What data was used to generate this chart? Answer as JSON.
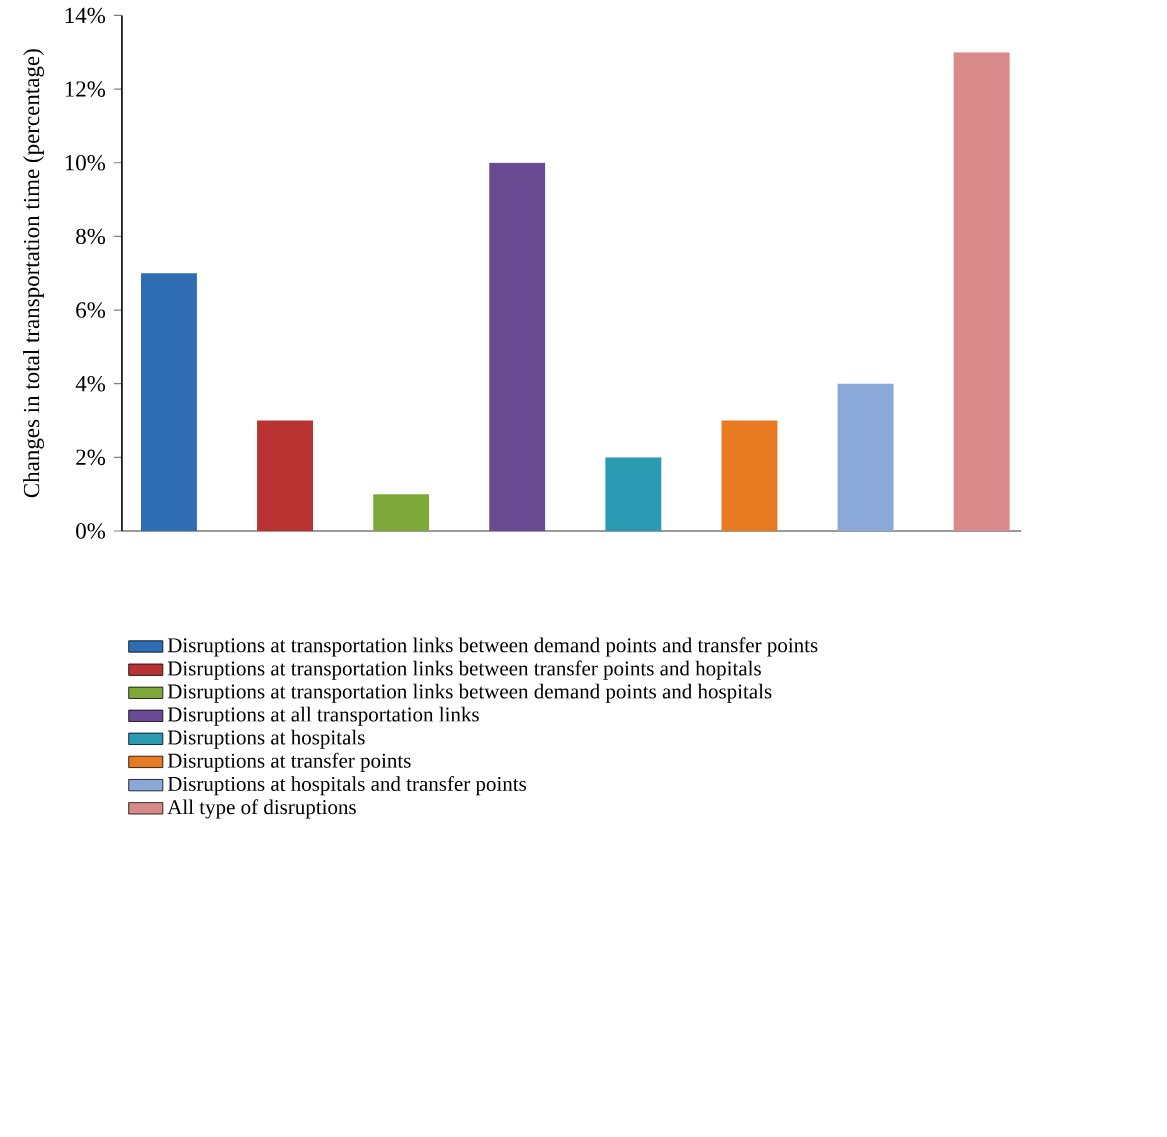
{
  "chart_data": {
    "type": "bar",
    "ylabel": "Changes in total transportation time (percentage)",
    "categories": [
      null,
      null,
      null,
      null,
      null,
      null,
      null,
      null
    ],
    "ylim": [
      0,
      14
    ],
    "yticks": [
      {
        "value": 0,
        "label": "0%"
      },
      {
        "value": 2,
        "label": "2%"
      },
      {
        "value": 4,
        "label": "4%"
      },
      {
        "value": 6,
        "label": "6%"
      },
      {
        "value": 8,
        "label": "8%"
      },
      {
        "value": 10,
        "label": "10%"
      },
      {
        "value": 12,
        "label": "12%"
      },
      {
        "value": 14,
        "label": "14%"
      }
    ],
    "tick_labels": "y",
    "legend": "bottom",
    "series": [
      {
        "name": "Disruptions at transportation links between demand points and transfer points",
        "color": "#2e6db4",
        "values": [
          7,
          null,
          null,
          null,
          null,
          null,
          null,
          null
        ]
      },
      {
        "name": "Disruptions at transportation links between transfer points and hopitals",
        "color": "#b83232",
        "values": [
          null,
          3,
          null,
          null,
          null,
          null,
          null,
          null
        ]
      },
      {
        "name": "Disruptions at transportation links between demand points and hospitals",
        "color": "#7fa83a",
        "values": [
          null,
          null,
          1,
          null,
          null,
          null,
          null,
          null
        ]
      },
      {
        "name": "Disruptions at all transportation links",
        "color": "#6a4a93",
        "values": [
          null,
          null,
          null,
          10,
          null,
          null,
          null,
          null
        ]
      },
      {
        "name": "Disruptions at hospitals",
        "color": "#2a9bb3",
        "values": [
          null,
          null,
          null,
          null,
          2,
          null,
          null,
          null
        ]
      },
      {
        "name": "Disruptions at transfer points",
        "color": "#e87a22",
        "values": [
          null,
          null,
          null,
          null,
          null,
          3,
          null,
          null
        ]
      },
      {
        "name": "Disruptions at hospitals and transfer points",
        "color": "#8aa8d8",
        "values": [
          null,
          null,
          null,
          null,
          null,
          null,
          4,
          null
        ]
      },
      {
        "name": "All type of disruptions",
        "color": "#d88a8a",
        "values": [
          null,
          null,
          null,
          null,
          null,
          null,
          null,
          13
        ]
      }
    ]
  }
}
